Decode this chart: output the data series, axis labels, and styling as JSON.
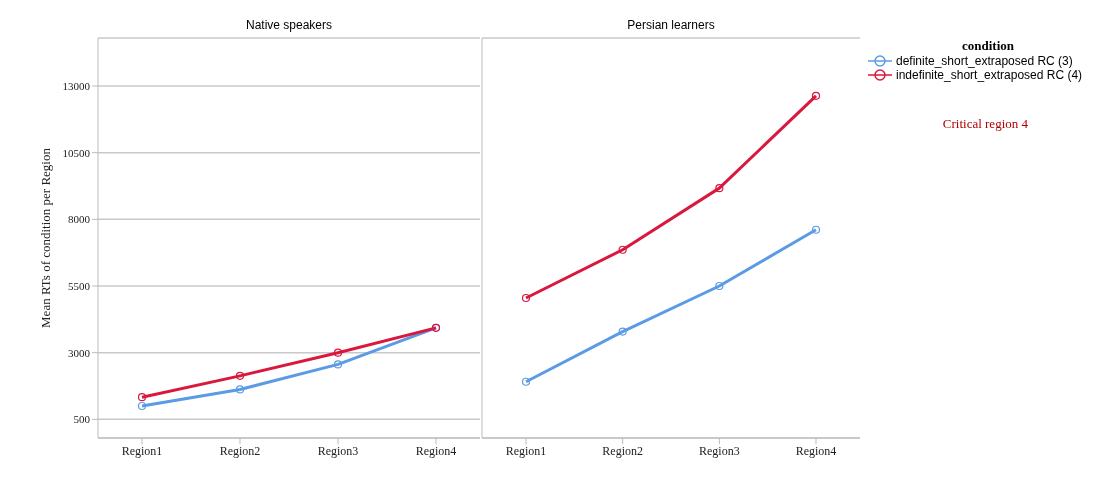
{
  "chart_data": [
    {
      "type": "line",
      "title": "Native speakers",
      "ylabel": "Mean RTs of condition per Region",
      "categories": [
        "Region1",
        "Region2",
        "Region3",
        "Region4"
      ],
      "series": [
        {
          "color": "#5b9be6",
          "values": [
            1000,
            1620,
            2560,
            3930
          ]
        },
        {
          "color": "#d9183e",
          "values": [
            1330,
            2130,
            3000,
            3930
          ]
        }
      ],
      "ylim": [
        -200,
        14800
      ],
      "yticks": [
        500,
        3000,
        5500,
        8000,
        10500,
        13000
      ],
      "grid": "y",
      "marker": "circle"
    },
    {
      "type": "line",
      "title": "Persian learners",
      "categories": [
        "Region1",
        "Region2",
        "Region3",
        "Region4"
      ],
      "series": [
        {
          "name": "definite_short_extraposed RC (3)",
          "color": "#5b9be6",
          "values": [
            1910,
            3790,
            5500,
            7610
          ]
        },
        {
          "name": "indefinite_short_extraposed RC (4)",
          "color": "#d9183e",
          "values": [
            5050,
            6860,
            9170,
            12630
          ]
        }
      ],
      "ylim": [
        -200,
        14800
      ],
      "yticks": [
        500,
        3000,
        5500,
        8000,
        10500,
        13000
      ],
      "grid": "y",
      "marker": "circle",
      "tick_labels": "x",
      "legend": "right",
      "legend_title": "condition",
      "annotations": [
        "Critical region 4"
      ]
    }
  ]
}
